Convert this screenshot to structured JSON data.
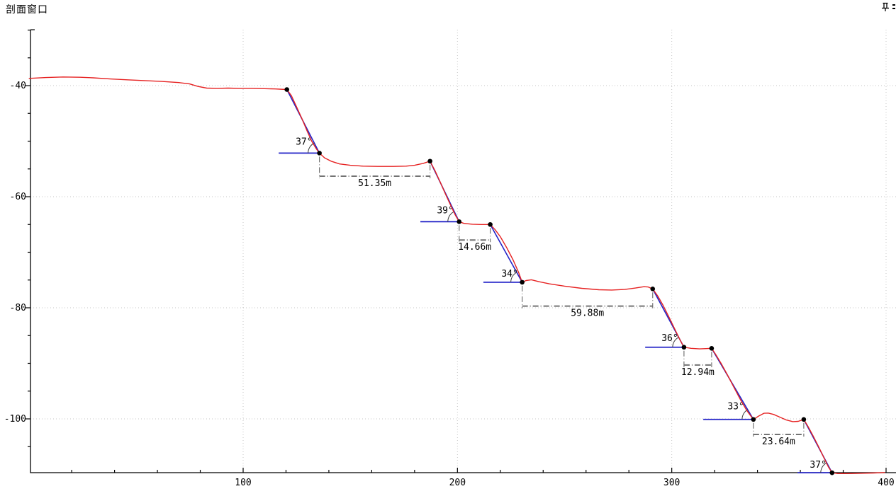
{
  "window": {
    "title": "剖面窗口",
    "icons": {
      "pin": "auto-hide-pin",
      "close": "close"
    }
  },
  "chart_data": {
    "type": "line",
    "title": "剖面窗口 (slope profile section)",
    "xlabel": "",
    "ylabel": "",
    "xlim": [
      0,
      404.5
    ],
    "ylim": [
      -110,
      -30
    ],
    "grid": "dotted gridlines at major ticks only",
    "legend": "none",
    "x_major_ticks": [
      100,
      200,
      300,
      400
    ],
    "x_minor_step": 20,
    "y_major_ticks": [
      -40,
      -60,
      -80,
      -100
    ],
    "y_minor_step": 5,
    "colors": {
      "profile": "#e62222",
      "design": "#2424c8",
      "node": "#000000",
      "measure": "#737373",
      "gridline": "#c6c6c6",
      "axis": "#000000",
      "arc": "#3a3a3a"
    },
    "profile_series": {
      "name": "terrain-profile-line",
      "points": [
        [
          0,
          -38.7
        ],
        [
          8,
          -38.55
        ],
        [
          16,
          -38.45
        ],
        [
          24,
          -38.5
        ],
        [
          30,
          -38.6
        ],
        [
          38,
          -38.8
        ],
        [
          46,
          -38.95
        ],
        [
          54,
          -39.1
        ],
        [
          62,
          -39.25
        ],
        [
          70,
          -39.45
        ],
        [
          75,
          -39.7
        ],
        [
          79,
          -40.15
        ],
        [
          83,
          -40.45
        ],
        [
          88,
          -40.5
        ],
        [
          93,
          -40.45
        ],
        [
          98,
          -40.5
        ],
        [
          104,
          -40.5
        ],
        [
          110,
          -40.55
        ],
        [
          115,
          -40.6
        ],
        [
          120.4,
          -40.7
        ],
        [
          122.5,
          -41.8
        ],
        [
          125,
          -43.9
        ],
        [
          127.5,
          -46.0
        ],
        [
          130,
          -48.3
        ],
        [
          132,
          -50.0
        ],
        [
          134,
          -51.3
        ],
        [
          135.6,
          -52.15
        ],
        [
          138,
          -53.0
        ],
        [
          141,
          -53.6
        ],
        [
          145,
          -54.1
        ],
        [
          150,
          -54.35
        ],
        [
          156,
          -54.5
        ],
        [
          163,
          -54.55
        ],
        [
          170,
          -54.55
        ],
        [
          176,
          -54.5
        ],
        [
          180,
          -54.35
        ],
        [
          184,
          -54.0
        ],
        [
          187.2,
          -53.6
        ],
        [
          189.5,
          -55.3
        ],
        [
          192,
          -57.4
        ],
        [
          194.5,
          -59.6
        ],
        [
          197,
          -61.7
        ],
        [
          199,
          -63.3
        ],
        [
          200.8,
          -64.5
        ],
        [
          203,
          -64.8
        ],
        [
          207,
          -64.95
        ],
        [
          211,
          -65.0
        ],
        [
          215.3,
          -65.0
        ],
        [
          217.5,
          -65.9
        ],
        [
          220,
          -67.2
        ],
        [
          223,
          -69.2
        ],
        [
          226,
          -71.4
        ],
        [
          228.5,
          -73.6
        ],
        [
          230.2,
          -75.4
        ],
        [
          232,
          -75.1
        ],
        [
          234.5,
          -74.95
        ],
        [
          238,
          -75.3
        ],
        [
          243,
          -75.7
        ],
        [
          250,
          -76.1
        ],
        [
          258,
          -76.5
        ],
        [
          266,
          -76.75
        ],
        [
          272,
          -76.8
        ],
        [
          278,
          -76.7
        ],
        [
          283,
          -76.45
        ],
        [
          287,
          -76.2
        ],
        [
          289,
          -76.25
        ],
        [
          291.1,
          -76.6
        ],
        [
          293.5,
          -77.9
        ],
        [
          296,
          -79.6
        ],
        [
          299,
          -81.9
        ],
        [
          302,
          -84.3
        ],
        [
          304,
          -85.9
        ],
        [
          305.7,
          -87.1
        ],
        [
          309,
          -87.3
        ],
        [
          313,
          -87.4
        ],
        [
          316,
          -87.35
        ],
        [
          318.6,
          -87.3
        ],
        [
          320.5,
          -88.4
        ],
        [
          323,
          -90.0
        ],
        [
          326,
          -92.1
        ],
        [
          329,
          -94.3
        ],
        [
          332,
          -96.5
        ],
        [
          335,
          -98.5
        ],
        [
          338.1,
          -100.1
        ],
        [
          340.5,
          -99.5
        ],
        [
          343,
          -99.0
        ],
        [
          345,
          -98.95
        ],
        [
          347.5,
          -99.2
        ],
        [
          350.5,
          -99.7
        ],
        [
          353.5,
          -100.2
        ],
        [
          356.5,
          -100.5
        ],
        [
          359,
          -100.45
        ],
        [
          361.6,
          -100.1
        ],
        [
          363.5,
          -101.3
        ],
        [
          366,
          -103.1
        ],
        [
          368.5,
          -105.0
        ],
        [
          371,
          -107.0
        ],
        [
          373,
          -108.6
        ],
        [
          374.8,
          -109.7
        ],
        [
          377.5,
          -109.85
        ],
        [
          382,
          -109.85
        ],
        [
          388,
          -109.8
        ],
        [
          394,
          -109.75
        ],
        [
          399.5,
          -109.65
        ]
      ]
    },
    "nodes": [
      [
        120.4,
        -40.7
      ],
      [
        135.6,
        -52.15
      ],
      [
        187.2,
        -53.6
      ],
      [
        200.8,
        -64.5
      ],
      [
        215.3,
        -65.0
      ],
      [
        230.2,
        -75.4
      ],
      [
        291.1,
        -76.6
      ],
      [
        305.7,
        -87.1
      ],
      [
        318.6,
        -87.3
      ],
      [
        338.1,
        -100.1
      ],
      [
        361.6,
        -100.1
      ],
      [
        374.8,
        -109.7
      ]
    ],
    "slopes": [
      {
        "top": 0,
        "toe": 1,
        "angle": "37°",
        "baseline_x1": 116.6,
        "label_pos": [
          128.4,
          -50.1
        ]
      },
      {
        "top": 2,
        "toe": 3,
        "angle": "39°",
        "baseline_x1": 182.7,
        "label_pos": [
          194.3,
          -62.5
        ]
      },
      {
        "top": 4,
        "toe": 5,
        "angle": "34°",
        "baseline_x1": 212.1,
        "label_pos": [
          224.4,
          -73.9
        ]
      },
      {
        "top": 6,
        "toe": 7,
        "angle": "36°",
        "baseline_x1": 287.6,
        "label_pos": [
          299.1,
          -85.5
        ]
      },
      {
        "top": 8,
        "toe": 9,
        "angle": "33°",
        "baseline_x1": 314.7,
        "label_pos": [
          329.9,
          -97.8
        ]
      },
      {
        "top": 10,
        "toe": 11,
        "angle": "37°",
        "baseline_x1": 358.7,
        "label_pos": [
          368.3,
          -108.3
        ]
      }
    ],
    "measurements": [
      {
        "label": "51.35m",
        "from": 1,
        "to": 2,
        "y_line": -56.3
      },
      {
        "label": "14.66m",
        "from": 3,
        "to": 4,
        "y_line": -67.8
      },
      {
        "label": "59.88m",
        "from": 5,
        "to": 6,
        "y_line": -79.7
      },
      {
        "label": "12.94m",
        "from": 7,
        "to": 8,
        "y_line": -90.3
      },
      {
        "label": "23.64m",
        "from": 9,
        "to": 10,
        "y_line": -102.8
      }
    ]
  }
}
